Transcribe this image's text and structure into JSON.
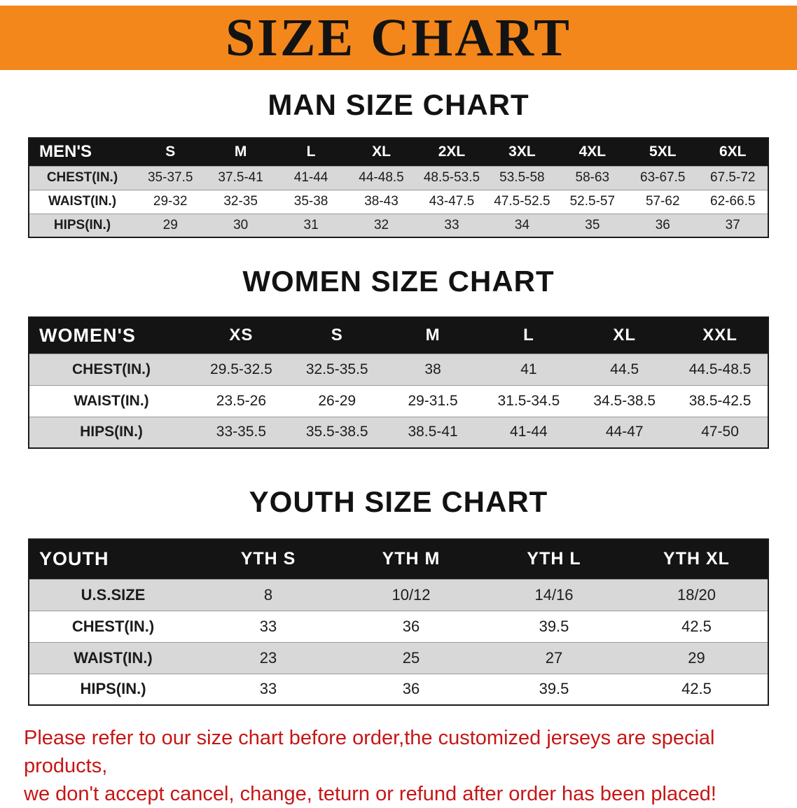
{
  "banner": {
    "title": "SIZE CHART"
  },
  "man_section": {
    "heading": "MAN SIZE CHART",
    "table": {
      "header": [
        "MEN'S",
        "S",
        "M",
        "L",
        "XL",
        "2XL",
        "3XL",
        "4XL",
        "5XL",
        "6XL"
      ],
      "rows": [
        [
          "CHEST(IN.)",
          "35-37.5",
          "37.5-41",
          "41-44",
          "44-48.5",
          "48.5-53.5",
          "53.5-58",
          "58-63",
          "63-67.5",
          "67.5-72"
        ],
        [
          "WAIST(IN.)",
          "29-32",
          "32-35",
          "35-38",
          "38-43",
          "43-47.5",
          "47.5-52.5",
          "52.5-57",
          "57-62",
          "62-66.5"
        ],
        [
          "HIPS(IN.)",
          "29",
          "30",
          "31",
          "32",
          "33",
          "34",
          "35",
          "36",
          "37"
        ]
      ]
    }
  },
  "women_section": {
    "heading": "WOMEN SIZE CHART",
    "table": {
      "header": [
        "WOMEN'S",
        "XS",
        "S",
        "M",
        "L",
        "XL",
        "XXL"
      ],
      "rows": [
        [
          "CHEST(IN.)",
          "29.5-32.5",
          "32.5-35.5",
          "38",
          "41",
          "44.5",
          "44.5-48.5"
        ],
        [
          "WAIST(IN.)",
          "23.5-26",
          "26-29",
          "29-31.5",
          "31.5-34.5",
          "34.5-38.5",
          "38.5-42.5"
        ],
        [
          "HIPS(IN.)",
          "33-35.5",
          "35.5-38.5",
          "38.5-41",
          "41-44",
          "44-47",
          "47-50"
        ]
      ]
    }
  },
  "youth_section": {
    "heading": "YOUTH SIZE CHART",
    "table": {
      "header": [
        "YOUTH",
        "YTH S",
        "YTH M",
        "YTH L",
        "YTH XL"
      ],
      "rows": [
        [
          "U.S.SIZE",
          "8",
          "10/12",
          "14/16",
          "18/20"
        ],
        [
          "CHEST(IN.)",
          "33",
          "36",
          "39.5",
          "42.5"
        ],
        [
          "WAIST(IN.)",
          "23",
          "25",
          "27",
          "29"
        ],
        [
          "HIPS(IN.)",
          "33",
          "36",
          "39.5",
          "42.5"
        ]
      ]
    }
  },
  "footer": {
    "line1": "Please refer to our size chart before order,the customized jerseys are special products,",
    "line2": "we don't accept cancel, change, teturn or refund after order has been placed!"
  },
  "colors": {
    "banner_bg": "#f3871c",
    "header_bg": "#141414",
    "stripe": "#d8d8d8",
    "footer_text": "#c71616"
  }
}
